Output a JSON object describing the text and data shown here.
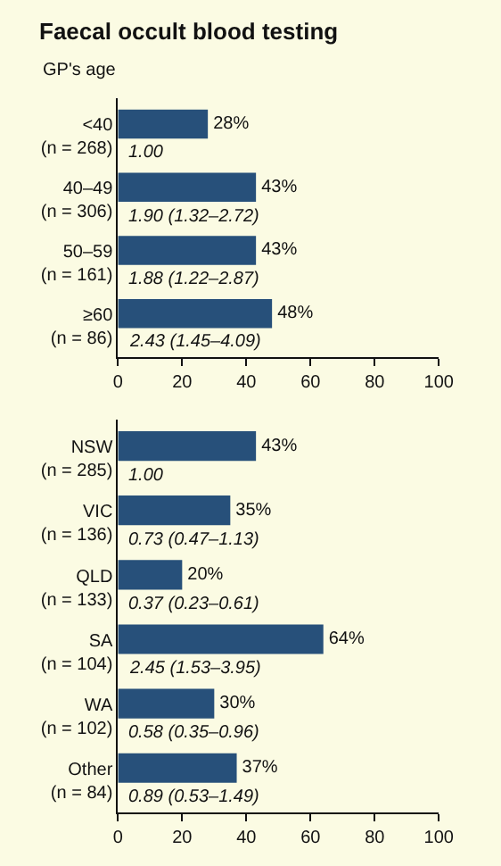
{
  "chart_data": [
    {
      "type": "bar",
      "title": "Faecal occult blood testing",
      "ylabel": "GP's age",
      "orientation": "horizontal",
      "categories": [
        "<40\n(n = 268)",
        "40–49\n(n = 306)",
        "50–59\n(n = 161)",
        "≥60\n(n = 86)"
      ],
      "values": [
        28,
        43,
        43,
        48
      ],
      "value_labels": [
        "28%",
        "43%",
        "43%",
        "48%"
      ],
      "color": "#27507a",
      "annotations": [
        "1.00",
        "1.90 (1.32–2.72)",
        "1.88 (1.22–2.87)",
        "2.43 (1.45–4.09)"
      ],
      "xlim": [
        0,
        100
      ],
      "xticks": [
        0,
        20,
        40,
        60,
        80,
        100
      ]
    },
    {
      "type": "bar",
      "orientation": "horizontal",
      "categories": [
        "NSW\n(n = 285)",
        "VIC\n(n = 136)",
        "QLD\n(n = 133)",
        "SA\n(n = 104)",
        "WA\n(n = 102)",
        "Other\n(n = 84)"
      ],
      "values": [
        43,
        35,
        20,
        64,
        30,
        37
      ],
      "value_labels": [
        "43%",
        "35%",
        "20%",
        "64%",
        "30%",
        "37%"
      ],
      "color": "#27507a",
      "annotations": [
        "1.00",
        "0.73 (0.47–1.13)",
        "0.37 (0.23–0.61)",
        "2.45 (1.53–3.95)",
        "0.58 (0.35–0.96)",
        "0.89 (0.53–1.49)"
      ],
      "xlim": [
        0,
        100
      ],
      "xticks": [
        0,
        20,
        40,
        60,
        80,
        100
      ]
    }
  ]
}
